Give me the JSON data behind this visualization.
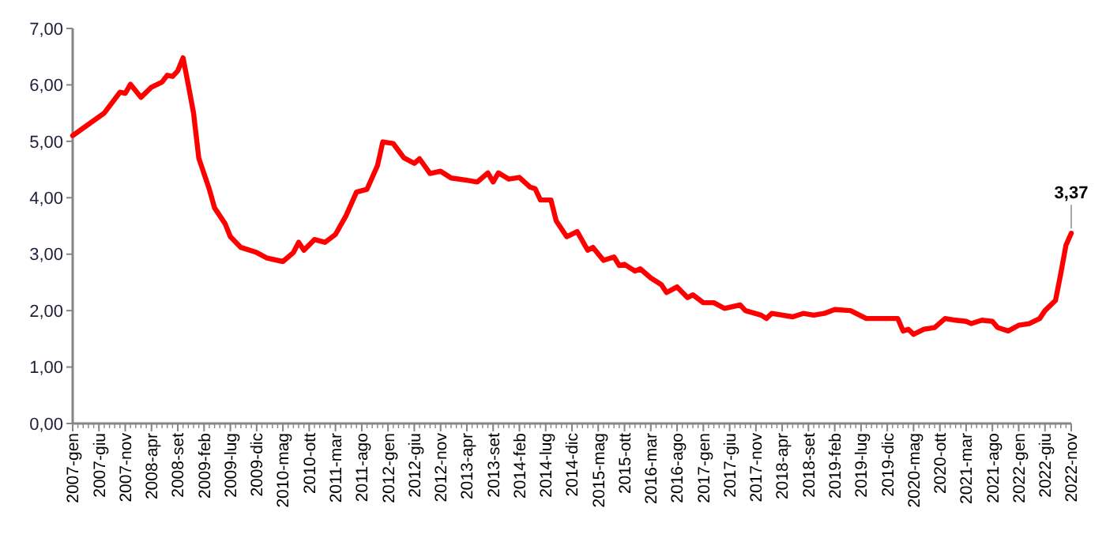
{
  "chart_data": {
    "type": "line",
    "x": [
      "2007-01",
      "2007-07",
      "2007-10",
      "2007-11",
      "2007-12",
      "2008-02",
      "2008-04",
      "2008-06",
      "2008-07",
      "2008-08",
      "2008-09",
      "2008-10",
      "2008-11",
      "2008-12",
      "2009-01",
      "2009-03",
      "2009-04",
      "2009-06",
      "2009-07",
      "2009-09",
      "2009-12",
      "2010-02",
      "2010-05",
      "2010-07",
      "2010-08",
      "2010-09",
      "2010-11",
      "2011-01",
      "2011-03",
      "2011-05",
      "2011-07",
      "2011-09",
      "2011-11",
      "2011-12",
      "2012-02",
      "2012-04",
      "2012-06",
      "2012-07",
      "2012-09",
      "2012-11",
      "2013-01",
      "2013-04",
      "2013-06",
      "2013-08",
      "2013-09",
      "2013-10",
      "2013-12",
      "2014-02",
      "2014-04",
      "2014-05",
      "2014-06",
      "2014-08",
      "2014-09",
      "2014-11",
      "2015-01",
      "2015-03",
      "2015-04",
      "2015-06",
      "2015-08",
      "2015-09",
      "2015-10",
      "2015-12",
      "2016-01",
      "2016-03",
      "2016-05",
      "2016-06",
      "2016-08",
      "2016-10",
      "2016-11",
      "2017-01",
      "2017-03",
      "2017-05",
      "2017-08",
      "2017-09",
      "2017-12",
      "2018-01",
      "2018-02",
      "2018-06",
      "2018-08",
      "2018-10",
      "2018-12",
      "2019-02",
      "2019-05",
      "2019-08",
      "2020-02",
      "2020-03",
      "2020-04",
      "2020-05",
      "2020-07",
      "2020-09",
      "2020-11",
      "2021-01",
      "2021-03",
      "2021-04",
      "2021-06",
      "2021-08",
      "2021-09",
      "2021-11",
      "2022-01",
      "2022-03",
      "2022-05",
      "2022-06",
      "2022-08",
      "2022-09",
      "2022-10",
      "2022-11"
    ],
    "series": [
      {
        "color": "#ff0000",
        "values": [
          5.1,
          5.5,
          5.87,
          5.85,
          6.01,
          5.78,
          5.96,
          6.05,
          6.17,
          6.15,
          6.25,
          6.48,
          6.0,
          5.5,
          4.7,
          4.15,
          3.82,
          3.54,
          3.31,
          3.12,
          3.03,
          2.93,
          2.87,
          3.03,
          3.21,
          3.07,
          3.26,
          3.21,
          3.35,
          3.68,
          4.1,
          4.15,
          4.57,
          4.99,
          4.96,
          4.71,
          4.61,
          4.69,
          4.43,
          4.47,
          4.35,
          4.31,
          4.28,
          4.44,
          4.28,
          4.44,
          4.33,
          4.36,
          4.19,
          4.16,
          3.96,
          3.96,
          3.59,
          3.31,
          3.4,
          3.07,
          3.12,
          2.89,
          2.95,
          2.8,
          2.82,
          2.7,
          2.74,
          2.58,
          2.46,
          2.32,
          2.42,
          2.23,
          2.28,
          2.14,
          2.14,
          2.04,
          2.1,
          2.0,
          1.92,
          1.86,
          1.95,
          1.89,
          1.95,
          1.92,
          1.95,
          2.02,
          2.0,
          1.86,
          1.86,
          1.64,
          1.67,
          1.58,
          1.67,
          1.7,
          1.86,
          1.83,
          1.81,
          1.77,
          1.83,
          1.81,
          1.7,
          1.64,
          1.74,
          1.77,
          1.86,
          2.0,
          2.18,
          2.65,
          3.16,
          3.37
        ]
      }
    ],
    "xlim": [
      "2007-01",
      "2022-11"
    ],
    "xticks": [
      {
        "value": "2007-01",
        "label": "2007-gen"
      },
      {
        "value": "2007-06",
        "label": "2007-giu"
      },
      {
        "value": "2007-11",
        "label": "2007-nov"
      },
      {
        "value": "2008-04",
        "label": "2008-apr"
      },
      {
        "value": "2008-09",
        "label": "2008-set"
      },
      {
        "value": "2009-02",
        "label": "2009-feb"
      },
      {
        "value": "2009-07",
        "label": "2009-lug"
      },
      {
        "value": "2009-12",
        "label": "2009-dic"
      },
      {
        "value": "2010-05",
        "label": "2010-mag"
      },
      {
        "value": "2010-10",
        "label": "2010-ott"
      },
      {
        "value": "2011-03",
        "label": "2011-mar"
      },
      {
        "value": "2011-08",
        "label": "2011-ago"
      },
      {
        "value": "2012-01",
        "label": "2012-gen"
      },
      {
        "value": "2012-06",
        "label": "2012-giu"
      },
      {
        "value": "2012-11",
        "label": "2012-nov"
      },
      {
        "value": "2013-04",
        "label": "2013-apr"
      },
      {
        "value": "2013-09",
        "label": "2013-set"
      },
      {
        "value": "2014-02",
        "label": "2014-feb"
      },
      {
        "value": "2014-07",
        "label": "2014-lug"
      },
      {
        "value": "2014-12",
        "label": "2014-dic"
      },
      {
        "value": "2015-05",
        "label": "2015-mag"
      },
      {
        "value": "2015-10",
        "label": "2015-ott"
      },
      {
        "value": "2016-03",
        "label": "2016-mar"
      },
      {
        "value": "2016-08",
        "label": "2016-ago"
      },
      {
        "value": "2017-01",
        "label": "2017-gen"
      },
      {
        "value": "2017-06",
        "label": "2017-giu"
      },
      {
        "value": "2017-11",
        "label": "2017-nov"
      },
      {
        "value": "2018-04",
        "label": "2018-apr"
      },
      {
        "value": "2018-09",
        "label": "2018-set"
      },
      {
        "value": "2019-02",
        "label": "2019-feb"
      },
      {
        "value": "2019-07",
        "label": "2019-lug"
      },
      {
        "value": "2019-12",
        "label": "2019-dic"
      },
      {
        "value": "2020-05",
        "label": "2020-mag"
      },
      {
        "value": "2020-10",
        "label": "2020-ott"
      },
      {
        "value": "2021-03",
        "label": "2021-mar"
      },
      {
        "value": "2021-08",
        "label": "2021-ago"
      },
      {
        "value": "2022-01",
        "label": "2022-gen"
      },
      {
        "value": "2022-06",
        "label": "2022-giu"
      },
      {
        "value": "2022-11",
        "label": "2022-nov"
      }
    ],
    "ylim": [
      0,
      7
    ],
    "yticks": [
      {
        "value": 0,
        "label": "0,00"
      },
      {
        "value": 1,
        "label": "1,00"
      },
      {
        "value": 2,
        "label": "2,00"
      },
      {
        "value": 3,
        "label": "3,00"
      },
      {
        "value": 4,
        "label": "4,00"
      },
      {
        "value": 5,
        "label": "5,00"
      },
      {
        "value": 6,
        "label": "6,00"
      },
      {
        "value": 7,
        "label": "7,00"
      }
    ],
    "annotations": [
      {
        "text": "3,37",
        "x": "2022-11",
        "y": 3.37
      }
    ],
    "marker": "none",
    "line_style": "solid"
  }
}
